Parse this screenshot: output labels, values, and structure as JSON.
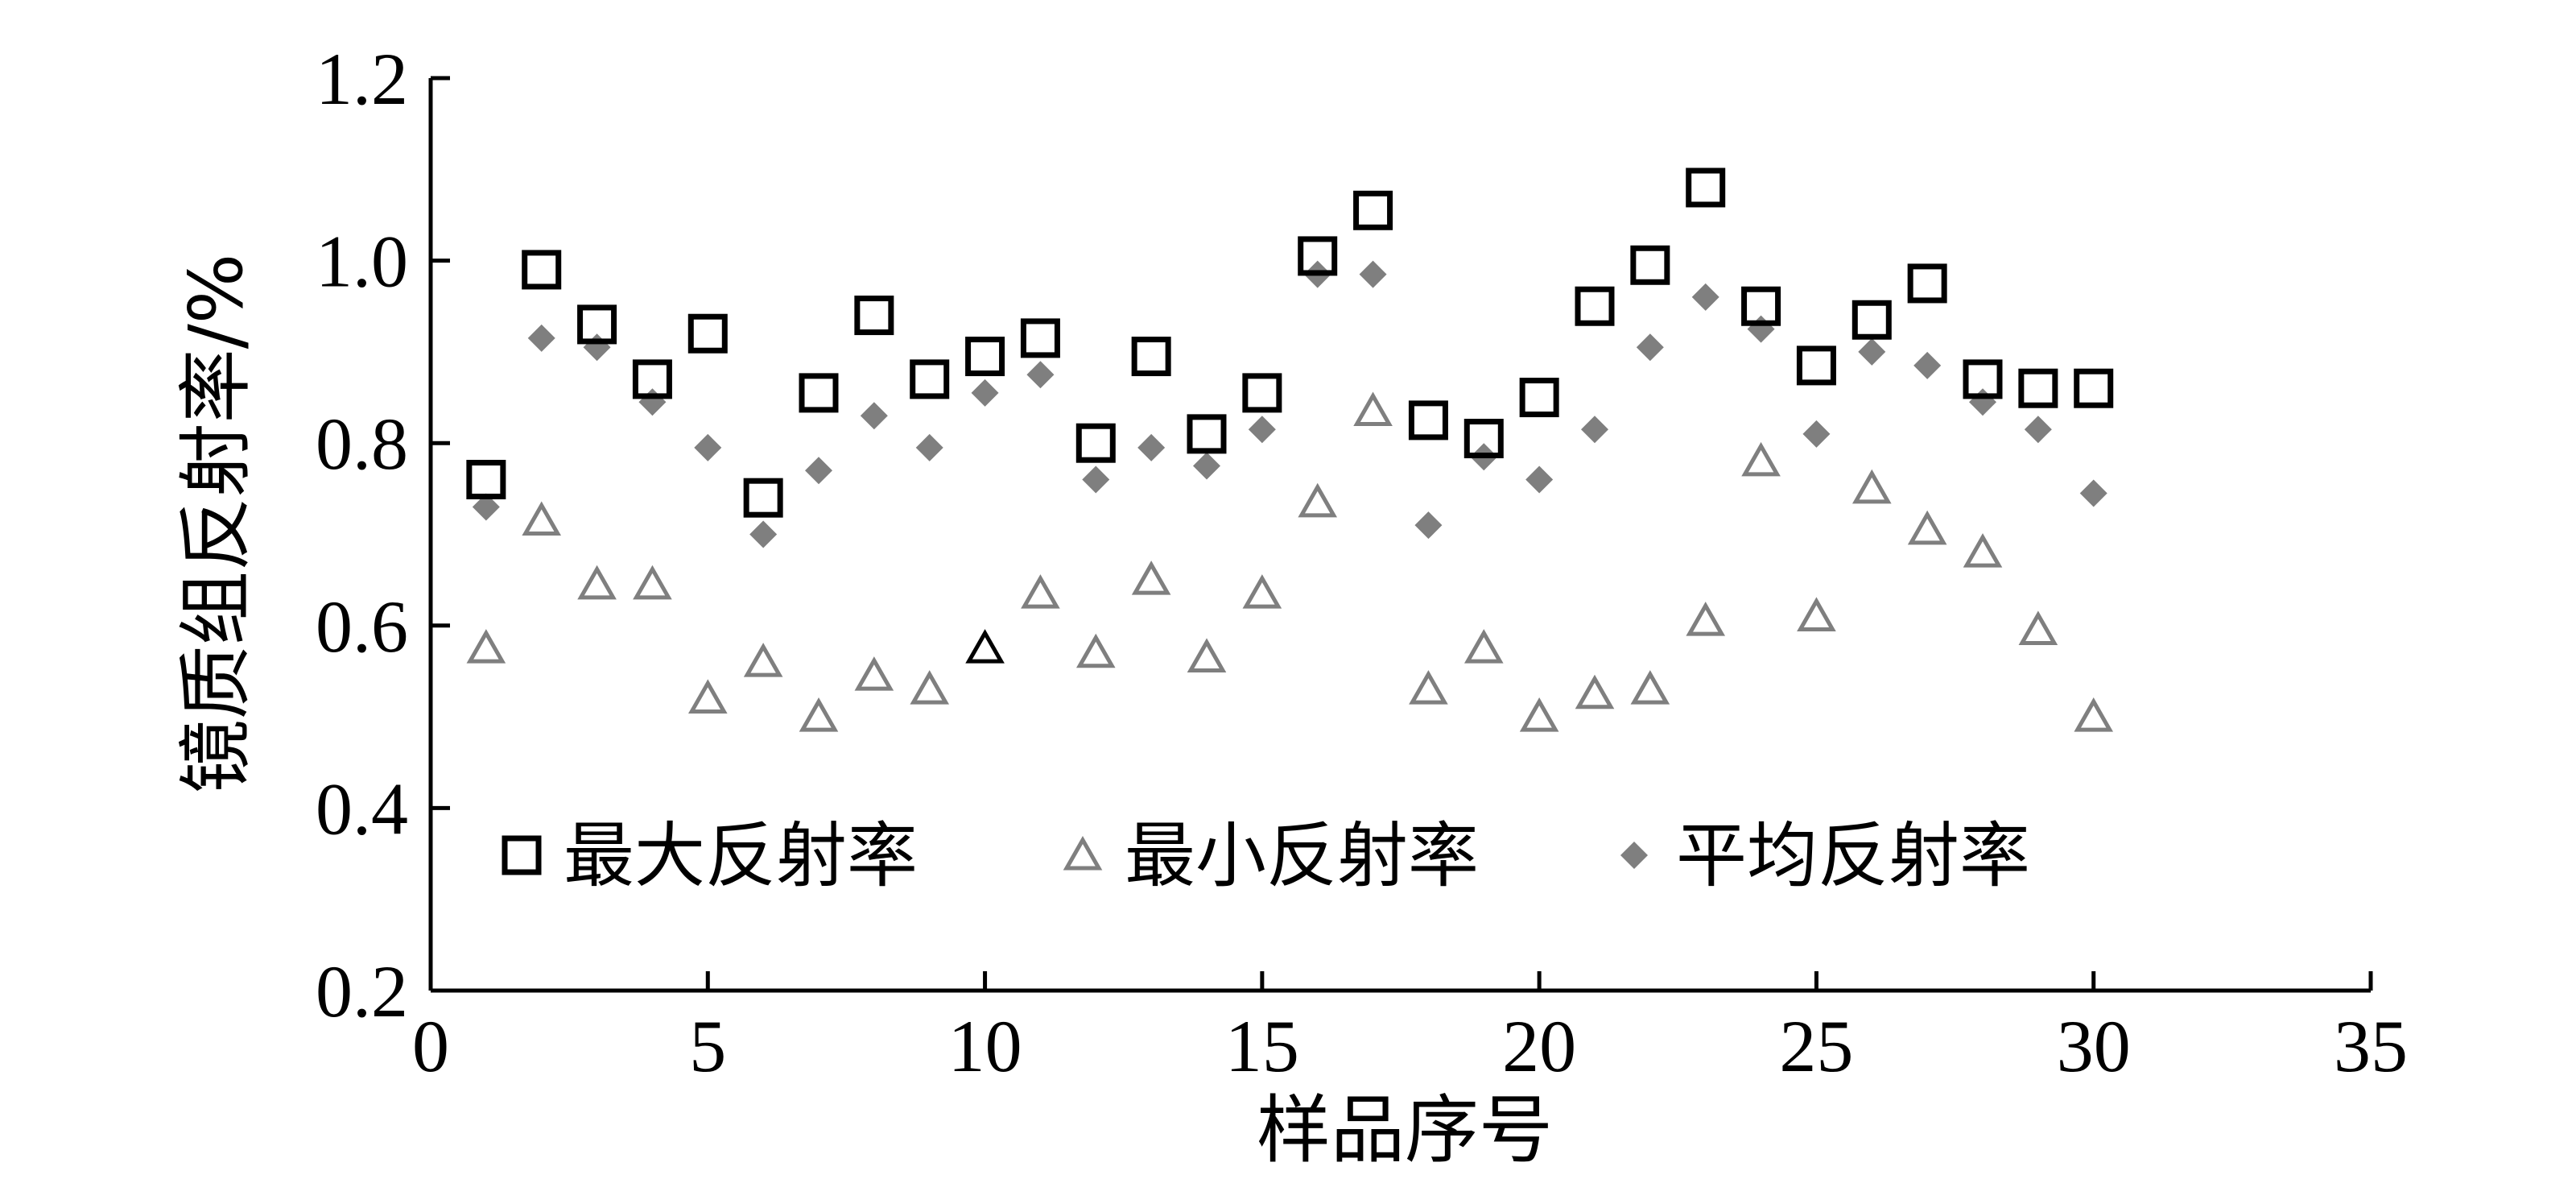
{
  "chart_data": {
    "type": "scatter",
    "xlabel": "样品序号",
    "ylabel": "镜质组反射率/%",
    "xlim": [
      0,
      35
    ],
    "ylim": [
      0.2,
      1.2
    ],
    "xticks": [
      0,
      5,
      10,
      15,
      20,
      25,
      30,
      35
    ],
    "yticks": [
      "0.2",
      "0.4",
      "0.6",
      "0.8",
      "1.0",
      "1.2"
    ],
    "grid": false,
    "legend_position": "inside-bottom",
    "x": [
      1,
      2,
      3,
      4,
      5,
      6,
      7,
      8,
      9,
      10,
      11,
      12,
      13,
      14,
      15,
      16,
      17,
      18,
      19,
      20,
      21,
      22,
      23,
      24,
      25,
      26,
      27,
      28,
      29,
      30
    ],
    "series": [
      {
        "name": "最大反射率",
        "marker": "square-open",
        "color": "#000000",
        "values": [
          0.76,
          0.99,
          0.93,
          0.87,
          0.92,
          0.74,
          0.855,
          0.94,
          0.87,
          0.895,
          0.915,
          0.8,
          0.895,
          0.81,
          0.855,
          1.005,
          1.055,
          0.825,
          0.805,
          0.85,
          0.95,
          0.995,
          1.08,
          0.95,
          0.885,
          0.935,
          0.975,
          0.87,
          0.86,
          0.86
        ]
      },
      {
        "name": "最小反射率",
        "marker": "triangle-open",
        "color": "#7f7f7f",
        "values": [
          0.575,
          0.715,
          0.645,
          0.645,
          0.52,
          0.56,
          0.5,
          0.545,
          0.53,
          0.575,
          0.635,
          0.57,
          0.65,
          0.565,
          0.635,
          0.735,
          0.835,
          0.53,
          0.575,
          0.5,
          0.525,
          0.53,
          0.605,
          0.78,
          0.61,
          0.75,
          0.705,
          0.68,
          0.595,
          0.5
        ]
      },
      {
        "name": "平均反射率",
        "marker": "diamond-filled",
        "color": "#7f7f7f",
        "values": [
          0.73,
          0.915,
          0.905,
          0.845,
          0.795,
          0.7,
          0.77,
          0.83,
          0.795,
          0.855,
          0.875,
          0.76,
          0.795,
          0.775,
          0.815,
          0.985,
          0.985,
          0.71,
          0.785,
          0.76,
          0.815,
          0.905,
          0.96,
          0.925,
          0.81,
          0.9,
          0.885,
          0.845,
          0.815,
          0.745
        ]
      }
    ]
  }
}
